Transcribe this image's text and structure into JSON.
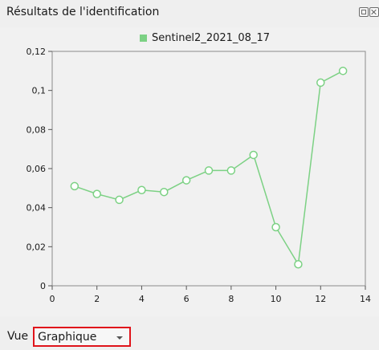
{
  "panel": {
    "title": "Résultats de l'identification",
    "float_icon": "float-panel-icon",
    "close_icon": "close-icon"
  },
  "chart_data": {
    "type": "line",
    "title": "",
    "xlabel": "",
    "ylabel": "",
    "legend": "top-center",
    "grid": false,
    "xlim": [
      0,
      14
    ],
    "ylim": [
      0,
      0.12
    ],
    "x_ticks": [
      "0",
      "2",
      "4",
      "6",
      "8",
      "10",
      "12",
      "14"
    ],
    "y_ticks": [
      "0",
      "0,02",
      "0,04",
      "0,06",
      "0,08",
      "0,1",
      "0,12"
    ],
    "series": [
      {
        "name": "Sentinel2_2021_08_17",
        "color": "#7cd184",
        "x": [
          1,
          2,
          3,
          4,
          5,
          6,
          7,
          8,
          9,
          10,
          11,
          12,
          13
        ],
        "y": [
          0.051,
          0.047,
          0.044,
          0.049,
          0.048,
          0.054,
          0.059,
          0.059,
          0.067,
          0.03,
          0.011,
          0.104,
          0.11
        ]
      }
    ]
  },
  "view": {
    "label": "Vue",
    "selected": "Graphique"
  }
}
